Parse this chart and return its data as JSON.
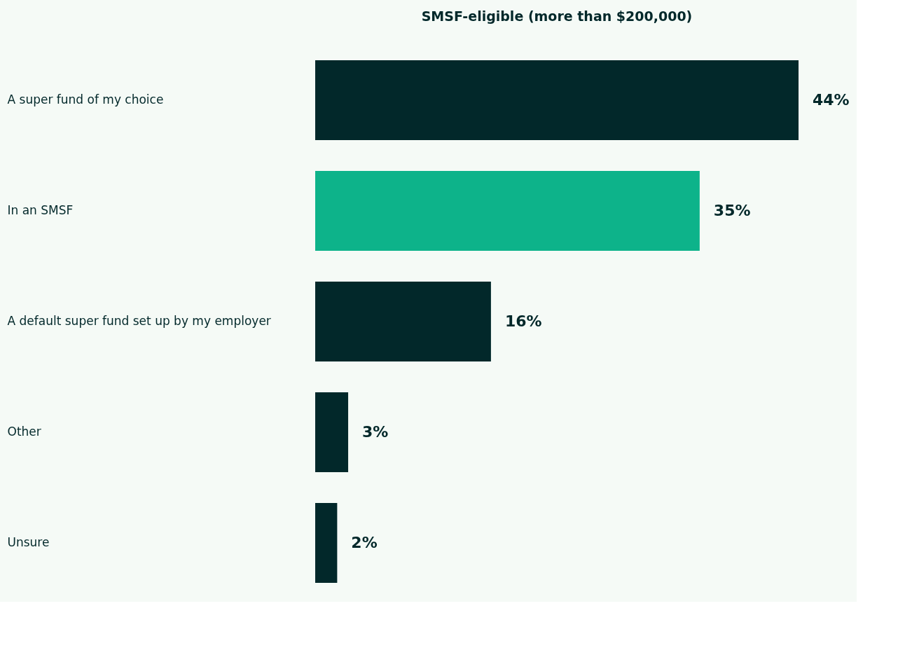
{
  "chart_data": {
    "type": "bar",
    "orientation": "horizontal",
    "title": "SMSF-eligible (more than $200,000)",
    "categories": [
      "A super fund of my choice",
      "In an SMSF",
      "A default super fund set up by my employer",
      "Other",
      "Unsure"
    ],
    "values": [
      44,
      35,
      16,
      3,
      2
    ],
    "value_labels": [
      "44%",
      "35%",
      "16%",
      "3%",
      "2%"
    ],
    "colors": [
      "#02282a",
      "#0db38a",
      "#02282a",
      "#02282a",
      "#02282a"
    ],
    "grid": false
  }
}
